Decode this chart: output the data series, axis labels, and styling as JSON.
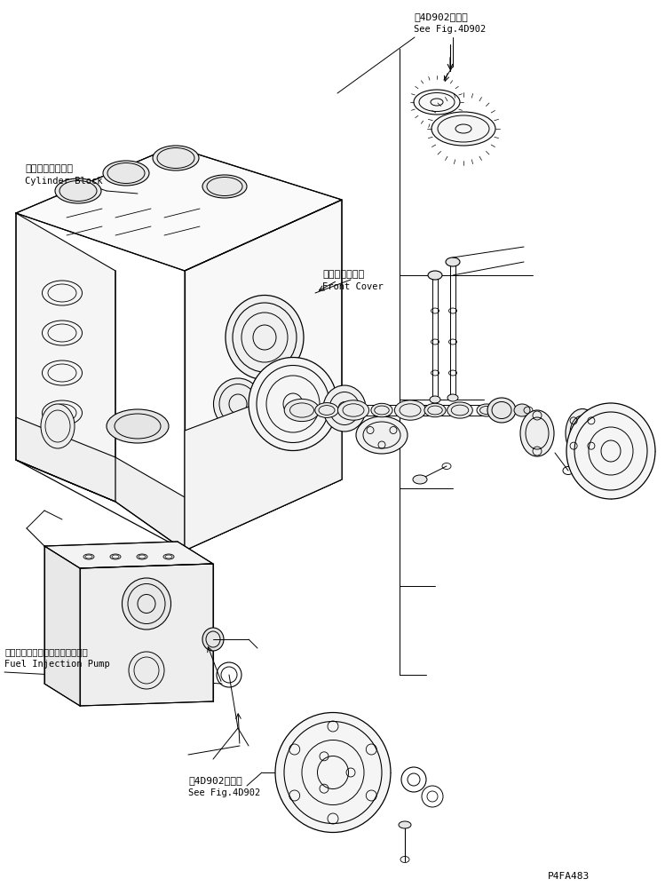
{
  "background_color": "#ffffff",
  "line_color": "#000000",
  "labels": {
    "top_ref_line1": "笥4D902図参照",
    "top_ref_line2": "See Fig.4D902",
    "cylinder_block_line1": "シリンダブロック",
    "cylinder_block_line2": "Cylinder Block",
    "front_cover_line1": "フロントカバー",
    "front_cover_line2": "Front Cover",
    "fuel_pump_line1": "フェエルインジェクションポンプ",
    "fuel_pump_line2": "Fuel Injection Pump",
    "bottom_ref_line1": "笥4D902図参照",
    "bottom_ref_line2": "See Fig.4D902",
    "part_number": "P4FA483"
  }
}
